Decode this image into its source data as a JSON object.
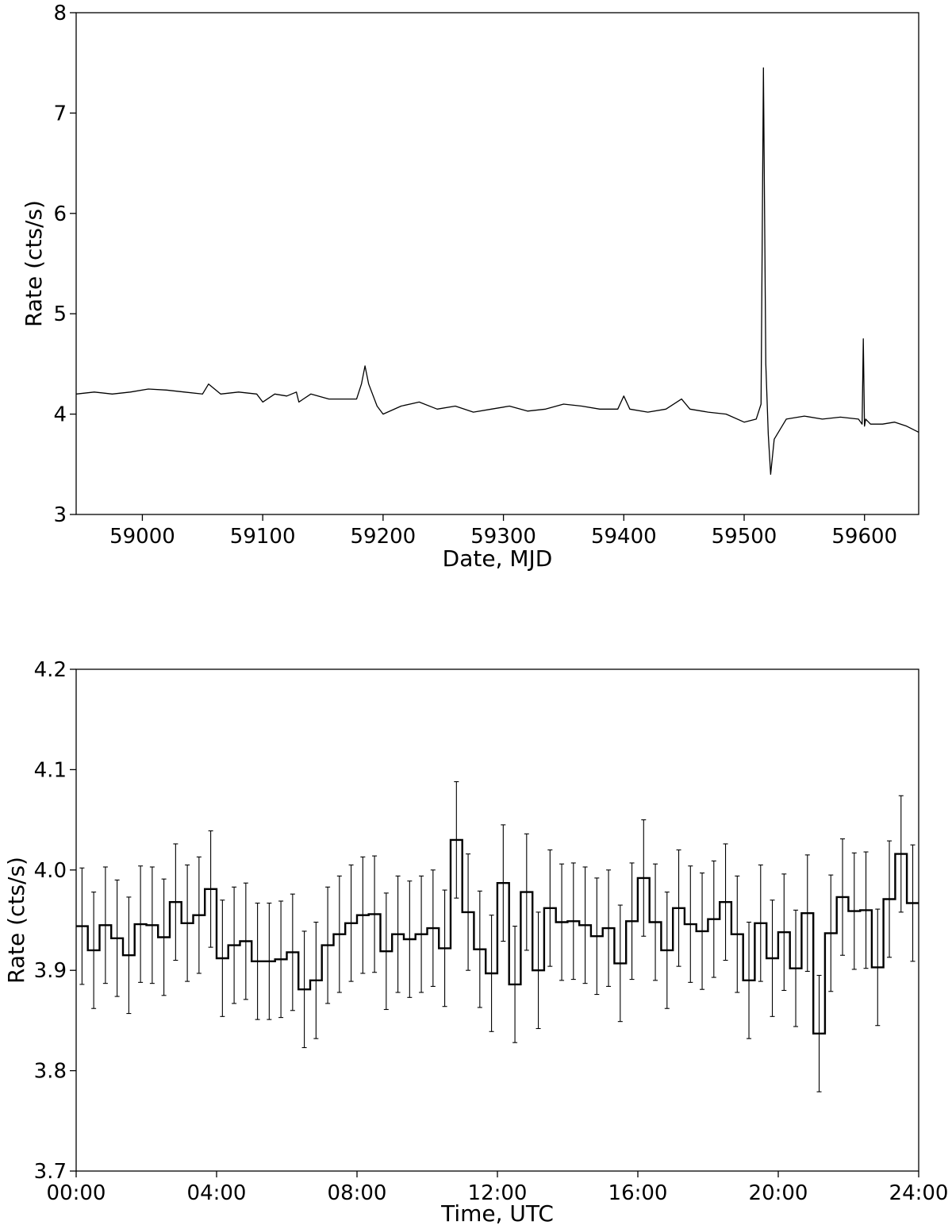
{
  "chart_data": [
    {
      "type": "line",
      "xlabel": "Date, MJD",
      "ylabel": "Rate (cts/s)",
      "xlim": [
        58945,
        59645
      ],
      "ylim": [
        3,
        8
      ],
      "xticks": [
        59000,
        59100,
        59200,
        59300,
        59400,
        59500,
        59600
      ],
      "yticks": [
        3,
        4,
        5,
        6,
        7,
        8
      ],
      "grid": false,
      "series": [
        {
          "color": "#000000",
          "x": [
            58945,
            58960,
            58975,
            58990,
            59005,
            59020,
            59035,
            59050,
            59055,
            59065,
            59080,
            59095,
            59100,
            59110,
            59120,
            59128,
            59130,
            59140,
            59155,
            59170,
            59178,
            59182,
            59185,
            59188,
            59195,
            59200,
            59215,
            59230,
            59245,
            59260,
            59275,
            59290,
            59305,
            59320,
            59335,
            59350,
            59365,
            59380,
            59395,
            59400,
            59405,
            59420,
            59435,
            59448,
            59455,
            59470,
            59485,
            59500,
            59510,
            59514,
            59516,
            59518,
            59520,
            59522,
            59525,
            59535,
            59550,
            59565,
            59580,
            59595,
            59598,
            59599,
            59600,
            59601,
            59605,
            59615,
            59625,
            59635,
            59645
          ],
          "y": [
            4.2,
            4.22,
            4.2,
            4.22,
            4.25,
            4.24,
            4.22,
            4.2,
            4.3,
            4.2,
            4.22,
            4.2,
            4.12,
            4.2,
            4.18,
            4.22,
            4.12,
            4.2,
            4.15,
            4.15,
            4.15,
            4.3,
            4.48,
            4.3,
            4.08,
            4.0,
            4.08,
            4.12,
            4.05,
            4.08,
            4.02,
            4.05,
            4.08,
            4.03,
            4.05,
            4.1,
            4.08,
            4.05,
            4.05,
            4.18,
            4.05,
            4.02,
            4.05,
            4.15,
            4.05,
            4.02,
            4.0,
            3.92,
            3.95,
            4.1,
            7.45,
            4.5,
            3.8,
            3.4,
            3.75,
            3.95,
            3.98,
            3.95,
            3.97,
            3.95,
            3.9,
            4.75,
            3.88,
            3.95,
            3.9,
            3.9,
            3.92,
            3.88,
            3.82
          ]
        }
      ]
    },
    {
      "type": "line",
      "xlabel": "Time, UTC",
      "ylabel": "Rate (cts/s)",
      "xlim": [
        0,
        24
      ],
      "ylim": [
        3.7,
        4.2
      ],
      "xticks": [
        0,
        4,
        8,
        12,
        16,
        20,
        24
      ],
      "xtick_labels": [
        "00:00",
        "04:00",
        "08:00",
        "12:00",
        "16:00",
        "20:00",
        "24:00"
      ],
      "yticks": [
        3.7,
        3.8,
        3.9,
        4.0,
        4.1,
        4.2
      ],
      "ytick_labels": [
        "3.7",
        "3.8",
        "3.9",
        "4.0",
        "4.1",
        "4.2"
      ],
      "grid": false,
      "series": [
        {
          "style": "steps-mid with error bars",
          "color": "#000000",
          "bin_width_hours": 0.3333,
          "values": [
            3.944,
            3.92,
            3.945,
            3.932,
            3.915,
            3.946,
            3.945,
            3.933,
            3.968,
            3.947,
            3.955,
            3.981,
            3.912,
            3.925,
            3.929,
            3.909,
            3.909,
            3.911,
            3.918,
            3.881,
            3.89,
            3.925,
            3.936,
            3.947,
            3.955,
            3.956,
            3.919,
            3.936,
            3.931,
            3.936,
            3.942,
            3.922,
            4.03,
            3.958,
            3.921,
            3.897,
            3.987,
            3.886,
            3.978,
            3.9,
            3.962,
            3.948,
            3.949,
            3.945,
            3.934,
            3.942,
            3.907,
            3.949,
            3.992,
            3.948,
            3.92,
            3.962,
            3.946,
            3.939,
            3.951,
            3.968,
            3.936,
            3.89,
            3.947,
            3.912,
            3.938,
            3.902,
            3.957,
            3.837,
            3.937,
            3.973,
            3.959,
            3.96,
            3.903,
            3.971,
            4.016,
            3.967
          ],
          "error": 0.058
        }
      ]
    }
  ]
}
